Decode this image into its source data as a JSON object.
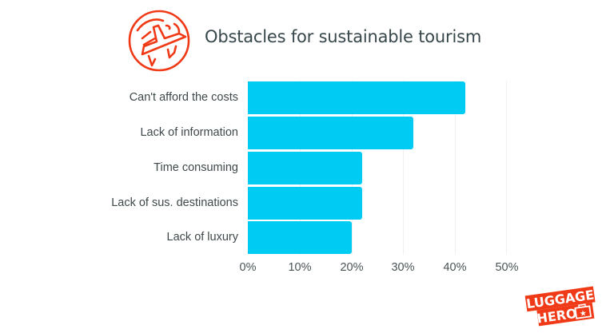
{
  "header": {
    "title": "Obstacles for sustainable tourism",
    "icon": "airplane-globe-icon"
  },
  "brand": {
    "line1": "LUGGAGE",
    "line2": "HERO",
    "icon": "suitcase-star-icon",
    "color": "#f03a17"
  },
  "colors": {
    "bar": "#00cbf3",
    "accent": "#f03a17",
    "title": "#37474b"
  },
  "chart_data": {
    "type": "bar",
    "orientation": "horizontal",
    "title": "Obstacles for sustainable tourism",
    "categories": [
      "Can't afford the costs",
      "Lack of information",
      "Time consuming",
      "Lack of sus. destinations",
      "Lack of luxury"
    ],
    "values": [
      42,
      32,
      22,
      22,
      20
    ],
    "unit": "%",
    "xlabel": "",
    "ylabel": "",
    "xlim": [
      0,
      50
    ],
    "xticks": [
      "0%",
      "10%",
      "20%",
      "30%",
      "40%",
      "50%"
    ],
    "grid": true,
    "legend": null
  }
}
